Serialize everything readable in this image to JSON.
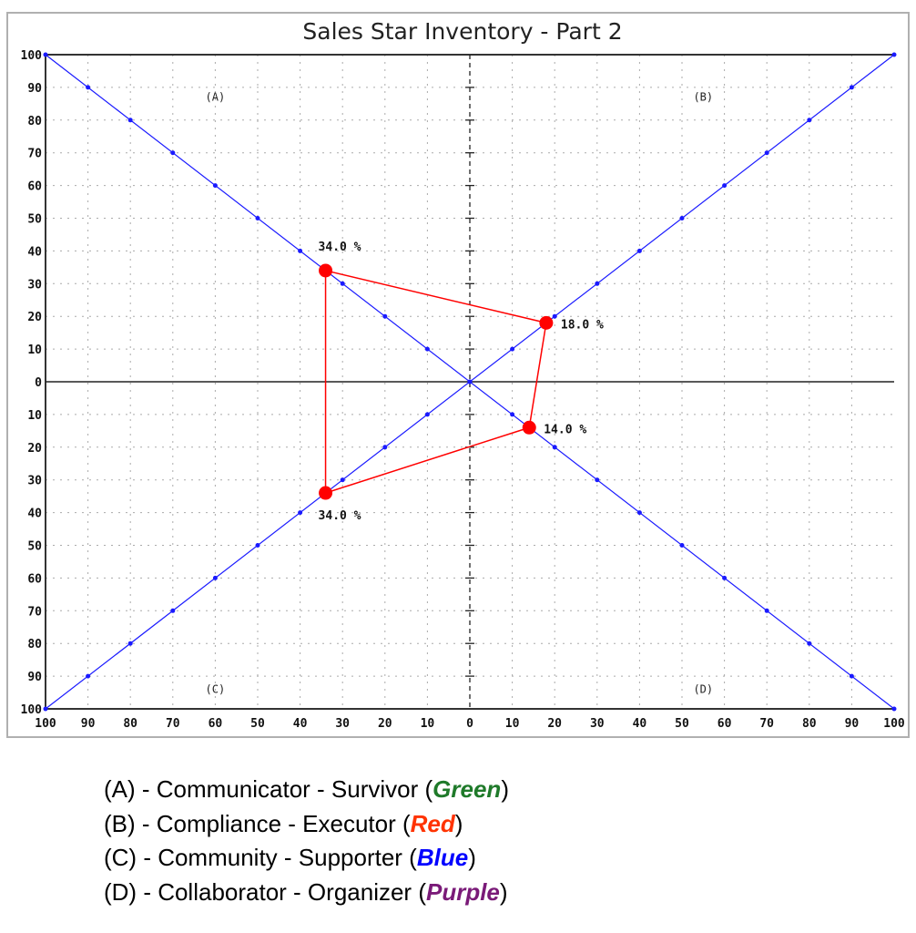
{
  "chart_data": {
    "type": "scatter",
    "title": "Sales Star Inventory - Part 2",
    "xlim": [
      -100,
      100
    ],
    "ylim": [
      -100,
      100
    ],
    "x_tick_labels": [
      "100",
      "90",
      "80",
      "70",
      "60",
      "50",
      "40",
      "30",
      "20",
      "10",
      "0",
      "10",
      "20",
      "30",
      "40",
      "50",
      "60",
      "70",
      "80",
      "90",
      "100"
    ],
    "y_tick_labels": [
      "100",
      "90",
      "80",
      "70",
      "60",
      "50",
      "40",
      "30",
      "20",
      "10",
      "0",
      "10",
      "20",
      "30",
      "40",
      "50",
      "60",
      "70",
      "80",
      "90",
      "100"
    ],
    "grid": true,
    "quadrant_labels": [
      {
        "label": "(A)",
        "x": -60,
        "y": 87
      },
      {
        "label": "(B)",
        "x": 55,
        "y": 87
      },
      {
        "label": "(C)",
        "x": -60,
        "y": -94
      },
      {
        "label": "(D)",
        "x": 55,
        "y": -94
      }
    ],
    "diagonals": {
      "color": "#1a1aff",
      "marker_step": 10
    },
    "series": [
      {
        "color": "#ff0000",
        "closed": true,
        "points": [
          {
            "quadrant": "A",
            "x": -34,
            "y": 34,
            "label": "34.0 %"
          },
          {
            "quadrant": "B",
            "x": 18,
            "y": 18,
            "label": "18.0 %"
          },
          {
            "quadrant": "D",
            "x": 14,
            "y": -14,
            "label": "14.0 %"
          },
          {
            "quadrant": "C",
            "x": -34,
            "y": -34,
            "label": "34.0 %"
          }
        ]
      }
    ]
  },
  "legend": [
    {
      "text": "(A) - Communicator - Survivor (",
      "color_name": "Green",
      "color": "#1f7a2a",
      "close": ")"
    },
    {
      "text": "(B) - Compliance - Executor (",
      "color_name": "Red",
      "color": "#ff3300",
      "close": ")"
    },
    {
      "text": "(C) - Community - Supporter (",
      "color_name": "Blue",
      "color": "#0000ff",
      "close": ")"
    },
    {
      "text": "(D) - Collaborator - Organizer (",
      "color_name": "Purple",
      "color": "#7a1a78",
      "close": ")"
    }
  ]
}
